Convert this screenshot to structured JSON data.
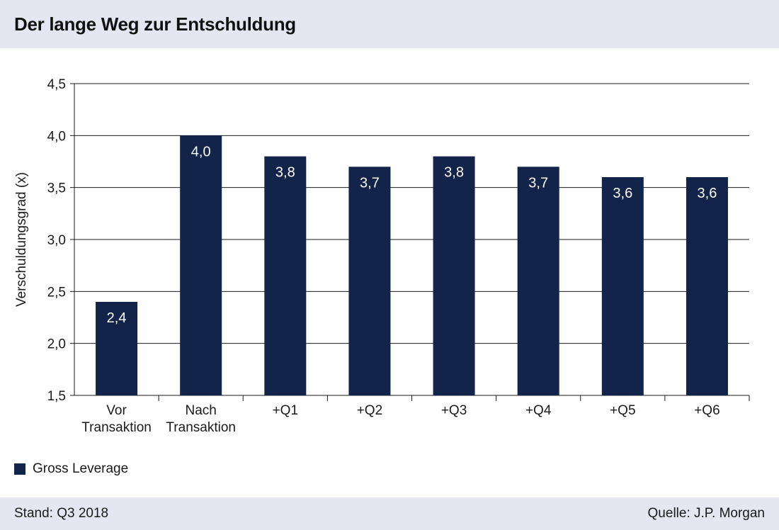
{
  "header": {
    "title": "Der lange Weg zur Entschuldung"
  },
  "footer": {
    "stand": "Stand: Q3 2018",
    "source": "Quelle: J.P. Morgan"
  },
  "colors": {
    "bar": "#13244a",
    "grid": "#1a1a1a",
    "band": "#e6e6f2",
    "label_text": "#ffffff"
  },
  "chart_data": {
    "type": "bar",
    "categories": [
      [
        "Vor",
        "Transaktion"
      ],
      [
        "Nach",
        "Transaktion"
      ],
      [
        "+Q1"
      ],
      [
        "+Q2"
      ],
      [
        "+Q3"
      ],
      [
        "+Q4"
      ],
      [
        "+Q5"
      ],
      [
        "+Q6"
      ]
    ],
    "series": [
      {
        "name": "Gross Leverage",
        "values": [
          2.4,
          4.0,
          3.8,
          3.7,
          3.8,
          3.7,
          3.6,
          3.6
        ]
      }
    ],
    "data_labels": [
      "2,4",
      "4,0",
      "3,8",
      "3,7",
      "3,8",
      "3,7",
      "3,6",
      "3,6"
    ],
    "ylabel": "Verschuldungsgrad (x)",
    "ylim": [
      1.5,
      4.5
    ],
    "yticks": [
      1.5,
      2.0,
      2.5,
      3.0,
      3.5,
      4.0,
      4.5
    ],
    "ytick_labels": [
      "1,5",
      "2,0",
      "2,5",
      "3,0",
      "3,5",
      "4,0",
      "4,5"
    ],
    "grid": true,
    "legend_position": "bottom-left"
  }
}
